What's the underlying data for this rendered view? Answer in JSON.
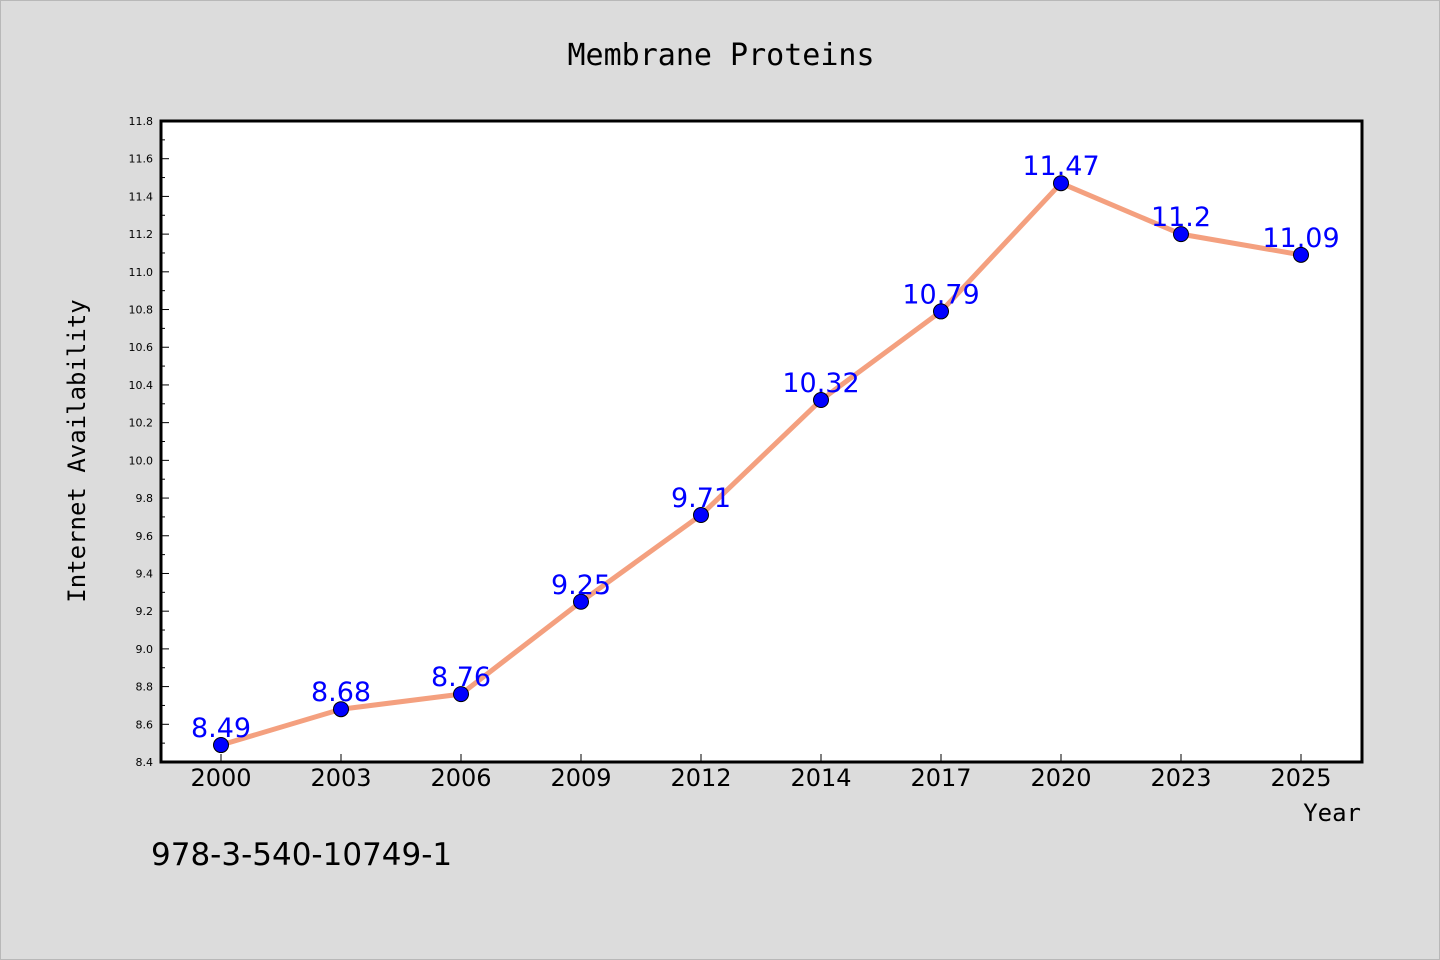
{
  "chart_data": {
    "type": "line",
    "title": "Membrane Proteins",
    "xlabel": "Year",
    "ylabel": "Internet Availability",
    "categories": [
      "2000",
      "2003",
      "2006",
      "2009",
      "2012",
      "2014",
      "2017",
      "2020",
      "2023",
      "2025"
    ],
    "series": [
      {
        "values": [
          8.49,
          8.68,
          8.76,
          9.25,
          9.71,
          10.32,
          10.79,
          11.47,
          11.2,
          11.09
        ],
        "data_labels": [
          "8.49",
          "8.68",
          "8.76",
          "9.25",
          "9.71",
          "10.32",
          "10.79",
          "11.47",
          "11.2",
          "11.09"
        ],
        "line_color": "#f4a07f",
        "marker_color": "#0000ff",
        "label_color": "#0000ff"
      }
    ],
    "ylim": [
      8.4,
      11.8
    ],
    "yticks": [
      "8.4",
      "8.6",
      "8.8",
      "9.0",
      "9.2",
      "9.4",
      "9.6",
      "9.8",
      "10.0",
      "10.2",
      "10.4",
      "10.6",
      "10.8",
      "11.0",
      "11.2",
      "11.4",
      "11.6",
      "11.8"
    ],
    "grid": false,
    "legend": "none"
  },
  "footer": {
    "code": "978-3-540-10749-1"
  },
  "colors": {
    "background": "#dcdcdc",
    "plot_area": "#ffffff",
    "axis": "#000000"
  }
}
